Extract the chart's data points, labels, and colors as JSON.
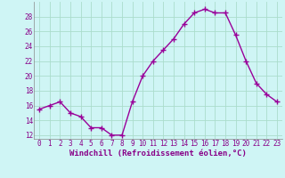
{
  "x": [
    0,
    1,
    2,
    3,
    4,
    5,
    6,
    7,
    8,
    9,
    10,
    11,
    12,
    13,
    14,
    15,
    16,
    17,
    18,
    19,
    20,
    21,
    22,
    23
  ],
  "y": [
    15.5,
    16.0,
    16.5,
    15.0,
    14.5,
    13.0,
    13.0,
    12.0,
    12.0,
    16.5,
    20.0,
    22.0,
    23.5,
    25.0,
    27.0,
    28.5,
    29.0,
    28.5,
    28.5,
    25.5,
    22.0,
    19.0,
    17.5,
    16.5
  ],
  "line_color": "#990099",
  "marker": "+",
  "marker_size": 4,
  "marker_linewidth": 1.0,
  "xlabel": "Windchill (Refroidissement éolien,°C)",
  "ylim": [
    11.5,
    30
  ],
  "xlim": [
    -0.5,
    23.5
  ],
  "yticks": [
    12,
    14,
    16,
    18,
    20,
    22,
    24,
    26,
    28
  ],
  "xticks": [
    0,
    1,
    2,
    3,
    4,
    5,
    6,
    7,
    8,
    9,
    10,
    11,
    12,
    13,
    14,
    15,
    16,
    17,
    18,
    19,
    20,
    21,
    22,
    23
  ],
  "bg_color": "#cff5f5",
  "grid_color": "#aaddcc",
  "tick_label_fontsize": 5.5,
  "xlabel_fontsize": 6.5,
  "xlabel_color": "#880088",
  "tick_color": "#880088",
  "line_width": 1.0
}
